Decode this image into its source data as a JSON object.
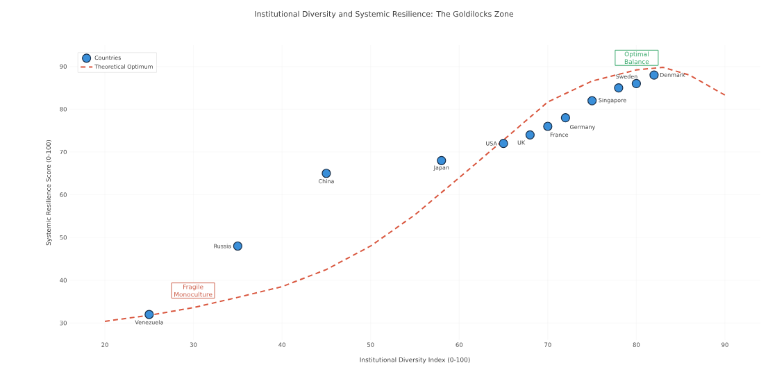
{
  "chart_data": {
    "type": "scatter",
    "title": "Institutional Diversity and Systemic Resilience: The Goldilocks Zone",
    "xlabel": "Institutional Diversity Index (0-100)",
    "ylabel": "Systemic Resilience Score (0-100)",
    "xlim": [
      16,
      94
    ],
    "ylim": [
      26,
      95
    ],
    "xticks": [
      20,
      30,
      40,
      50,
      60,
      70,
      80,
      90
    ],
    "yticks": [
      30,
      40,
      50,
      60,
      70,
      80,
      90
    ],
    "grid": true,
    "legend": "top left",
    "series": [
      {
        "name": "Countries",
        "marker": "circle",
        "color": "#3a8fd9",
        "x": [
          25,
          35,
          45,
          58,
          65,
          68,
          70,
          72,
          75,
          78,
          80,
          82
        ],
        "values": [
          32,
          48,
          65,
          68,
          72,
          74,
          76,
          78,
          82,
          85,
          86,
          88
        ]
      },
      {
        "name": "Theoretical Optimum",
        "type": "line",
        "line_style": "dashed",
        "marker": "none",
        "color": "#d9573f",
        "x": [
          20,
          25,
          30,
          35,
          40,
          45,
          50,
          55,
          60,
          65,
          70,
          75,
          80,
          83,
          86,
          90
        ],
        "values": [
          30.4,
          31.8,
          33.6,
          36,
          38.5,
          42.5,
          48,
          55.3,
          64,
          72.8,
          81.7,
          86.6,
          89.2,
          89.8,
          88,
          83.3
        ]
      }
    ],
    "annotations": [
      "Fragile Monoculture",
      "Optimal Balance",
      {
        "text": "Venezuela",
        "x": 25,
        "y": 32
      },
      {
        "text": "Russia",
        "x": 35,
        "y": 48
      },
      {
        "text": "China",
        "x": 45,
        "y": 65
      },
      {
        "text": "Japan",
        "x": 58,
        "y": 68
      },
      {
        "text": "USA",
        "x": 65,
        "y": 72
      },
      {
        "text": "UK",
        "x": 68,
        "y": 74
      },
      {
        "text": "France",
        "x": 70,
        "y": 76
      },
      {
        "text": "Germany",
        "x": 72,
        "y": 78
      },
      {
        "text": "Singapore",
        "x": 75,
        "y": 82
      },
      {
        "text": "Sweden",
        "x": 80,
        "y": 86
      },
      {
        "text": "Denmark",
        "x": 82,
        "y": 88
      }
    ]
  }
}
